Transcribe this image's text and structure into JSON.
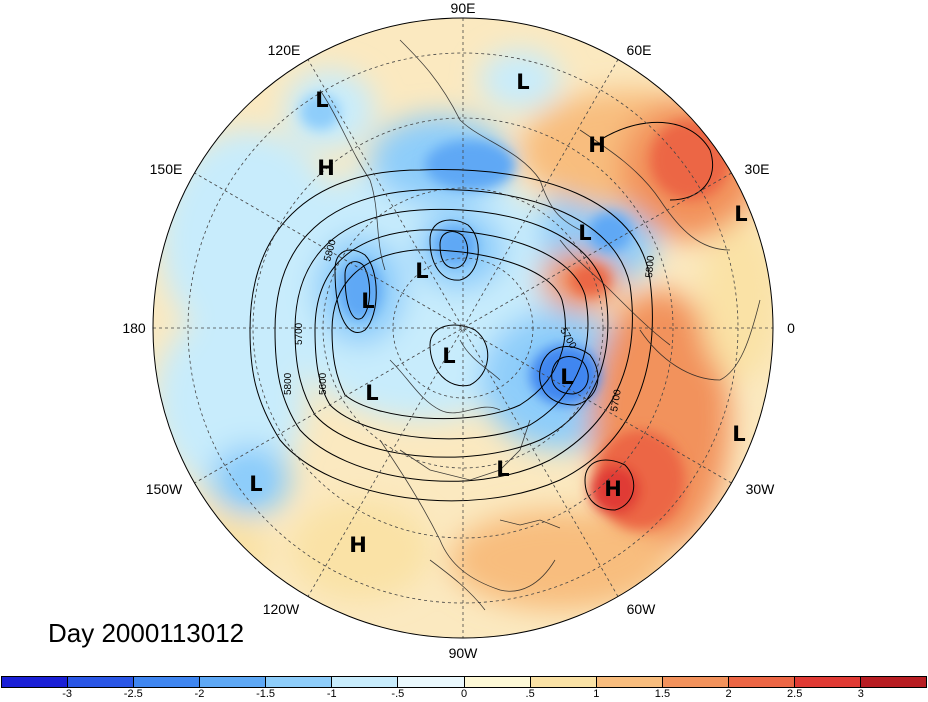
{
  "title": "Day 2000113012",
  "longitude_labels": [
    "90E",
    "60E",
    "30E",
    "0",
    "30W",
    "60W",
    "90W",
    "120W",
    "150W",
    "180",
    "150E",
    "120E"
  ],
  "pressure_systems": [
    {
      "type": "L"
    },
    {
      "type": "L"
    },
    {
      "type": "H"
    },
    {
      "type": "H"
    },
    {
      "type": "L"
    },
    {
      "type": "L"
    },
    {
      "type": "L"
    },
    {
      "type": "L"
    },
    {
      "type": "L"
    },
    {
      "type": "L"
    },
    {
      "type": "L"
    },
    {
      "type": "L"
    },
    {
      "type": "L"
    },
    {
      "type": "H"
    },
    {
      "type": "L"
    },
    {
      "type": "H"
    }
  ],
  "contour_labels": [
    "5800",
    "5700",
    "5600",
    "5800",
    "5700",
    "5800",
    "5700"
  ],
  "colorbar": {
    "colors": [
      "#1a1fd6",
      "#2a56e6",
      "#3f86f0",
      "#5ea8f5",
      "#8ecdfa",
      "#c8ecfc",
      "#eaf8fd",
      "#fdf8d6",
      "#fae2a6",
      "#f8bd7e",
      "#f2925c",
      "#ec6645",
      "#e03a34",
      "#b81d22"
    ],
    "tick_labels": [
      "-3",
      "-2.5",
      "-2",
      "-1.5",
      "-1",
      "-.5",
      "0",
      ".5",
      "1",
      "1.5",
      "2",
      "2.5",
      "3"
    ]
  },
  "anomaly_color_scale": {
    "strong_negative": "#2a56e6",
    "weak_negative": "#8ecdfa",
    "neutral": "#fdf8d6",
    "weak_positive": "#f8bd7e",
    "strong_positive": "#e03a34"
  }
}
